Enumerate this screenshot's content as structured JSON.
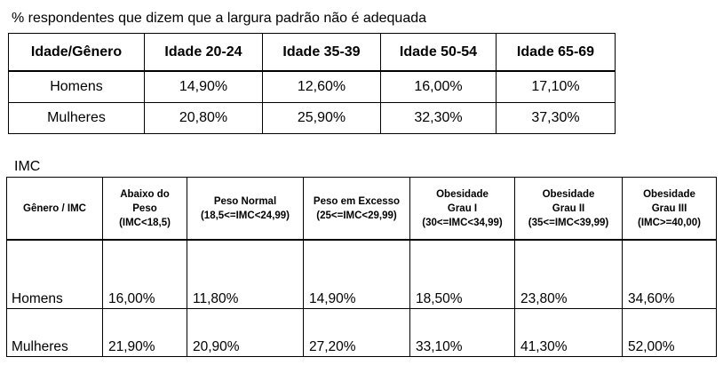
{
  "table1": {
    "caption": "% respondentes que dizem que a largura padrão não é adequada",
    "headers": [
      "Idade/Gênero",
      "Idade 20-24",
      "Idade 35-39",
      "Idade 50-54",
      "Idade 65-69"
    ],
    "rows": [
      {
        "label": "Homens",
        "values": [
          "14,90%",
          "12,60%",
          "16,00%",
          "17,10%"
        ]
      },
      {
        "label": "Mulheres",
        "values": [
          "20,80%",
          "25,90%",
          "32,30%",
          "37,30%"
        ]
      }
    ]
  },
  "table2": {
    "caption": "IMC",
    "headers": [
      {
        "lines": [
          "Gênero / IMC"
        ]
      },
      {
        "lines": [
          "Abaixo do",
          "Peso",
          "(IMC<18,5)"
        ]
      },
      {
        "lines": [
          "Peso Normal",
          "(18,5<=IMC<24,99)"
        ]
      },
      {
        "lines": [
          "Peso em Excesso",
          "(25<=IMC<29,99)"
        ]
      },
      {
        "lines": [
          "Obesidade",
          "Grau I",
          "(30<=IMC<34,99)"
        ]
      },
      {
        "lines": [
          "Obesidade",
          "Grau II",
          "(35<=IMC<39,99)"
        ]
      },
      {
        "lines": [
          "Obesidade",
          "Grau III",
          "(IMC>=40,00)"
        ]
      }
    ],
    "rows": [
      {
        "label": "Homens",
        "values": [
          "16,00%",
          "11,80%",
          "14,90%",
          "18,50%",
          "23,80%",
          "34,60%"
        ]
      },
      {
        "label": "Mulheres",
        "values": [
          "21,90%",
          "20,90%",
          "27,20%",
          "33,10%",
          "41,30%",
          "52,00%"
        ]
      }
    ]
  }
}
